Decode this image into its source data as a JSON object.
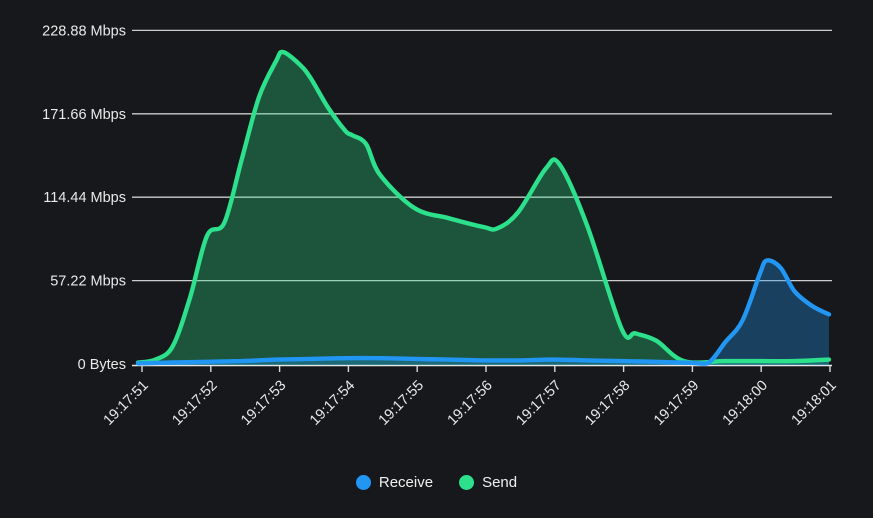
{
  "app": {
    "background_color": "#17181b",
    "text_color": "#e9e9e9",
    "grid_color": "#d8d8d8",
    "axis_color": "#e8e8e8"
  },
  "chart_data": {
    "type": "area",
    "title": "",
    "xlabel": "",
    "ylabel": "",
    "grid": true,
    "legend_position": "bottom-center",
    "x_tick_labels": [
      "19:17:51",
      "19:17:52",
      "19:17:53",
      "19:17:54",
      "19:17:55",
      "19:17:56",
      "19:17:57",
      "19:17:58",
      "19:17:59",
      "19:18:00",
      "19:18:01"
    ],
    "y_tick_labels": [
      "228.88 Mbps",
      "171.66 Mbps",
      "114.44 Mbps",
      "57.22 Mbps",
      "0 Bytes"
    ],
    "y_tick_values": [
      228.88,
      171.66,
      114.44,
      57.22,
      0
    ],
    "ylim": [
      0,
      238
    ],
    "x_range_seconds": [
      0,
      10
    ],
    "unit": "Mbps",
    "series": [
      {
        "name": "Receive",
        "color": "#2196f3",
        "fill_opacity": 0.32,
        "points": [
          [
            0,
            0.5
          ],
          [
            0.5,
            1
          ],
          [
            1,
            1.5
          ],
          [
            1.5,
            2
          ],
          [
            2,
            3
          ],
          [
            2.5,
            3.5
          ],
          [
            3,
            4
          ],
          [
            3.5,
            4
          ],
          [
            4,
            3.5
          ],
          [
            4.5,
            3
          ],
          [
            5,
            2.5
          ],
          [
            5.5,
            2.5
          ],
          [
            6,
            3
          ],
          [
            6.5,
            2.5
          ],
          [
            7,
            2
          ],
          [
            7.5,
            1.5
          ],
          [
            8,
            0.8
          ],
          [
            8.25,
            0.6
          ],
          [
            8.5,
            15
          ],
          [
            8.75,
            30
          ],
          [
            9,
            62
          ],
          [
            9.1,
            71
          ],
          [
            9.3,
            66
          ],
          [
            9.5,
            50
          ],
          [
            9.75,
            40
          ],
          [
            10,
            34
          ]
        ]
      },
      {
        "name": "Send",
        "color": "#2ce08c",
        "fill_opacity": 0.3,
        "points": [
          [
            0,
            1
          ],
          [
            0.25,
            3
          ],
          [
            0.5,
            12
          ],
          [
            0.75,
            45
          ],
          [
            1,
            88
          ],
          [
            1.25,
            97
          ],
          [
            1.5,
            140
          ],
          [
            1.75,
            183
          ],
          [
            2,
            208
          ],
          [
            2.1,
            214
          ],
          [
            2.35,
            205
          ],
          [
            2.5,
            196
          ],
          [
            2.75,
            176
          ],
          [
            3,
            160
          ],
          [
            3.1,
            157
          ],
          [
            3.3,
            151
          ],
          [
            3.5,
            130
          ],
          [
            4,
            107
          ],
          [
            4.5,
            100
          ],
          [
            5,
            94
          ],
          [
            5.2,
            93
          ],
          [
            5.5,
            104
          ],
          [
            5.9,
            134
          ],
          [
            6.1,
            137
          ],
          [
            6.5,
            95
          ],
          [
            7,
            24
          ],
          [
            7.2,
            21
          ],
          [
            7.5,
            16
          ],
          [
            7.9,
            2
          ],
          [
            8.5,
            2
          ],
          [
            9,
            2
          ],
          [
            9.5,
            2
          ],
          [
            10,
            3
          ]
        ]
      }
    ]
  }
}
